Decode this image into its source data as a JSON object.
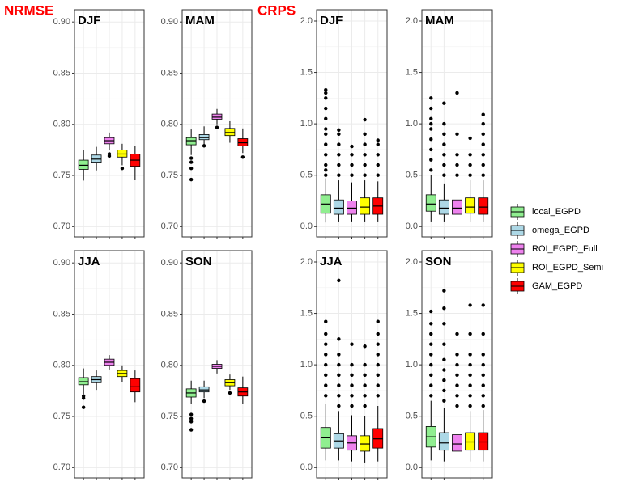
{
  "chart_data": {
    "type": "box",
    "grid": true,
    "legend": "right",
    "series": [
      {
        "name": "local_EGPD",
        "color": "#90ee90"
      },
      {
        "name": "omega_EGPD",
        "color": "#add8e6"
      },
      {
        "name": "ROI_EGPD_Full",
        "color": "#ee82ee"
      },
      {
        "name": "ROI_EGPD_Semi",
        "color": "#ffff00"
      },
      {
        "name": "GAM_EGPD",
        "color": "#ff0000"
      }
    ],
    "groups": [
      {
        "title": "NRMSE",
        "ylim": [
          0.69,
          0.912
        ],
        "yticks": [
          {
            "value": 0.7,
            "label": "0.70"
          },
          {
            "value": 0.75,
            "label": "0.75"
          },
          {
            "value": 0.8,
            "label": "0.80"
          },
          {
            "value": 0.85,
            "label": "0.85"
          },
          {
            "value": 0.9,
            "label": "0.90"
          }
        ],
        "panels": [
          {
            "title": "DJF",
            "boxes": [
              {
                "low": 0.745,
                "q1": 0.756,
                "median": 0.76,
                "q3": 0.765,
                "high": 0.775,
                "outliers": []
              },
              {
                "low": 0.755,
                "q1": 0.763,
                "median": 0.766,
                "q3": 0.77,
                "high": 0.778,
                "outliers": []
              },
              {
                "low": 0.775,
                "q1": 0.781,
                "median": 0.784,
                "q3": 0.787,
                "high": 0.792,
                "outliers": [
                  0.771,
                  0.769
                ]
              },
              {
                "low": 0.76,
                "q1": 0.768,
                "median": 0.771,
                "q3": 0.775,
                "high": 0.781,
                "outliers": [
                  0.757
                ]
              },
              {
                "low": 0.746,
                "q1": 0.759,
                "median": 0.765,
                "q3": 0.771,
                "high": 0.779,
                "outliers": []
              }
            ]
          },
          {
            "title": "MAM",
            "boxes": [
              {
                "low": 0.77,
                "q1": 0.78,
                "median": 0.784,
                "q3": 0.787,
                "high": 0.795,
                "outliers": [
                  0.767,
                  0.763,
                  0.757,
                  0.746
                ]
              },
              {
                "low": 0.78,
                "q1": 0.785,
                "median": 0.787,
                "q3": 0.79,
                "high": 0.798,
                "outliers": [
                  0.779
                ]
              },
              {
                "low": 0.8,
                "q1": 0.805,
                "median": 0.807,
                "q3": 0.81,
                "high": 0.815,
                "outliers": [
                  0.797
                ]
              },
              {
                "low": 0.782,
                "q1": 0.789,
                "median": 0.792,
                "q3": 0.796,
                "high": 0.803,
                "outliers": []
              },
              {
                "low": 0.772,
                "q1": 0.779,
                "median": 0.782,
                "q3": 0.786,
                "high": 0.796,
                "outliers": [
                  0.768
                ]
              }
            ]
          },
          {
            "title": "JJA",
            "boxes": [
              {
                "low": 0.772,
                "q1": 0.781,
                "median": 0.784,
                "q3": 0.788,
                "high": 0.797,
                "outliers": [
                  0.77,
                  0.768,
                  0.759
                ]
              },
              {
                "low": 0.776,
                "q1": 0.783,
                "median": 0.786,
                "q3": 0.789,
                "high": 0.795,
                "outliers": []
              },
              {
                "low": 0.796,
                "q1": 0.8,
                "median": 0.803,
                "q3": 0.806,
                "high": 0.81,
                "outliers": []
              },
              {
                "low": 0.784,
                "q1": 0.789,
                "median": 0.792,
                "q3": 0.795,
                "high": 0.8,
                "outliers": []
              },
              {
                "low": 0.764,
                "q1": 0.774,
                "median": 0.779,
                "q3": 0.787,
                "high": 0.795,
                "outliers": []
              }
            ]
          },
          {
            "title": "SON",
            "boxes": [
              {
                "low": 0.762,
                "q1": 0.769,
                "median": 0.773,
                "q3": 0.777,
                "high": 0.785,
                "outliers": [
                  0.752,
                  0.748,
                  0.745,
                  0.737
                ]
              },
              {
                "low": 0.768,
                "q1": 0.774,
                "median": 0.776,
                "q3": 0.779,
                "high": 0.785,
                "outliers": [
                  0.765
                ]
              },
              {
                "low": 0.792,
                "q1": 0.797,
                "median": 0.799,
                "q3": 0.801,
                "high": 0.805,
                "outliers": []
              },
              {
                "low": 0.776,
                "q1": 0.78,
                "median": 0.783,
                "q3": 0.786,
                "high": 0.791,
                "outliers": [
                  0.773
                ]
              },
              {
                "low": 0.762,
                "q1": 0.77,
                "median": 0.774,
                "q3": 0.778,
                "high": 0.789,
                "outliers": []
              }
            ]
          }
        ]
      },
      {
        "title": "CRPS",
        "ylim": [
          -0.1,
          2.11
        ],
        "yticks": [
          {
            "value": 0,
            "label": "0.0"
          },
          {
            "value": 0.5,
            "label": "0.5"
          },
          {
            "value": 1,
            "label": "1.0"
          },
          {
            "value": 1.5,
            "label": "1.5"
          },
          {
            "value": 2,
            "label": "2.0"
          }
        ],
        "panels": [
          {
            "title": "DJF",
            "boxes": [
              {
                "low": 0.04,
                "q1": 0.13,
                "median": 0.22,
                "q3": 0.31,
                "high": 0.47,
                "outliers": [
                  0.5,
                  0.55,
                  0.6,
                  0.7,
                  0.8,
                  0.9,
                  0.95,
                  1.05,
                  1.15,
                  1.25,
                  1.3,
                  1.33
                ]
              },
              {
                "low": 0.05,
                "q1": 0.12,
                "median": 0.18,
                "q3": 0.26,
                "high": 0.45,
                "outliers": [
                  0.5,
                  0.6,
                  0.7,
                  0.8,
                  0.9,
                  0.94
                ]
              },
              {
                "low": 0.05,
                "q1": 0.12,
                "median": 0.18,
                "q3": 0.25,
                "high": 0.43,
                "outliers": [
                  0.5,
                  0.6,
                  0.7,
                  0.78
                ]
              },
              {
                "low": 0.05,
                "q1": 0.12,
                "median": 0.19,
                "q3": 0.28,
                "high": 0.45,
                "outliers": [
                  0.5,
                  0.6,
                  0.7,
                  0.8,
                  0.9,
                  1.04
                ]
              },
              {
                "low": 0.05,
                "q1": 0.12,
                "median": 0.2,
                "q3": 0.28,
                "high": 0.44,
                "outliers": [
                  0.5,
                  0.6,
                  0.7,
                  0.8,
                  0.84
                ]
              }
            ]
          },
          {
            "title": "MAM",
            "boxes": [
              {
                "low": 0.05,
                "q1": 0.15,
                "median": 0.22,
                "q3": 0.31,
                "high": 0.5,
                "outliers": [
                  0.55,
                  0.65,
                  0.75,
                  0.85,
                  0.95,
                  1.0,
                  1.05,
                  1.15,
                  1.25
                ]
              },
              {
                "low": 0.05,
                "q1": 0.12,
                "median": 0.18,
                "q3": 0.26,
                "high": 0.42,
                "outliers": [
                  0.5,
                  0.6,
                  0.7,
                  0.8,
                  0.9,
                  1.0,
                  1.2
                ]
              },
              {
                "low": 0.05,
                "q1": 0.12,
                "median": 0.18,
                "q3": 0.26,
                "high": 0.43,
                "outliers": [
                  0.5,
                  0.6,
                  0.7,
                  0.9,
                  1.3
                ]
              },
              {
                "low": 0.05,
                "q1": 0.13,
                "median": 0.19,
                "q3": 0.28,
                "high": 0.45,
                "outliers": [
                  0.5,
                  0.6,
                  0.7,
                  0.86
                ]
              },
              {
                "low": 0.05,
                "q1": 0.12,
                "median": 0.19,
                "q3": 0.28,
                "high": 0.45,
                "outliers": [
                  0.5,
                  0.6,
                  0.7,
                  0.8,
                  0.9,
                  1.0,
                  1.09
                ]
              }
            ]
          },
          {
            "title": "JJA",
            "boxes": [
              {
                "low": 0.07,
                "q1": 0.19,
                "median": 0.29,
                "q3": 0.39,
                "high": 0.62,
                "outliers": [
                  0.7,
                  0.8,
                  0.9,
                  1.0,
                  1.1,
                  1.2,
                  1.3,
                  1.42
                ]
              },
              {
                "low": 0.07,
                "q1": 0.19,
                "median": 0.26,
                "q3": 0.33,
                "high": 0.55,
                "outliers": [
                  0.6,
                  0.7,
                  0.8,
                  0.9,
                  1.0,
                  1.1,
                  1.25,
                  1.82
                ]
              },
              {
                "low": 0.06,
                "q1": 0.17,
                "median": 0.24,
                "q3": 0.31,
                "high": 0.51,
                "outliers": [
                  0.6,
                  0.7,
                  0.8,
                  0.9,
                  1.0,
                  1.2
                ]
              },
              {
                "low": 0.05,
                "q1": 0.16,
                "median": 0.23,
                "q3": 0.31,
                "high": 0.5,
                "outliers": [
                  0.6,
                  0.7,
                  0.8,
                  0.9,
                  1.0,
                  1.18
                ]
              },
              {
                "low": 0.06,
                "q1": 0.19,
                "median": 0.28,
                "q3": 0.38,
                "high": 0.6,
                "outliers": [
                  0.7,
                  0.8,
                  0.9,
                  1.0,
                  1.1,
                  1.2,
                  1.3,
                  1.42
                ]
              }
            ]
          },
          {
            "title": "SON",
            "boxes": [
              {
                "low": 0.07,
                "q1": 0.2,
                "median": 0.3,
                "q3": 0.4,
                "high": 0.65,
                "outliers": [
                  0.7,
                  0.8,
                  0.9,
                  1.0,
                  1.1,
                  1.2,
                  1.3,
                  1.4,
                  1.52
                ]
              },
              {
                "low": 0.06,
                "q1": 0.17,
                "median": 0.24,
                "q3": 0.34,
                "high": 0.58,
                "outliers": [
                  0.65,
                  0.75,
                  0.85,
                  0.95,
                  1.05,
                  1.2,
                  1.4,
                  1.55,
                  1.72
                ]
              },
              {
                "low": 0.05,
                "q1": 0.16,
                "median": 0.23,
                "q3": 0.32,
                "high": 0.5,
                "outliers": [
                  0.6,
                  0.7,
                  0.8,
                  0.9,
                  1.0,
                  1.1,
                  1.3
                ]
              },
              {
                "low": 0.06,
                "q1": 0.17,
                "median": 0.25,
                "q3": 0.34,
                "high": 0.55,
                "outliers": [
                  0.6,
                  0.7,
                  0.8,
                  0.9,
                  1.0,
                  1.1,
                  1.3,
                  1.58
                ]
              },
              {
                "low": 0.06,
                "q1": 0.17,
                "median": 0.25,
                "q3": 0.34,
                "high": 0.56,
                "outliers": [
                  0.6,
                  0.7,
                  0.8,
                  0.9,
                  1.0,
                  1.1,
                  1.3,
                  1.58
                ]
              }
            ]
          }
        ]
      }
    ]
  }
}
